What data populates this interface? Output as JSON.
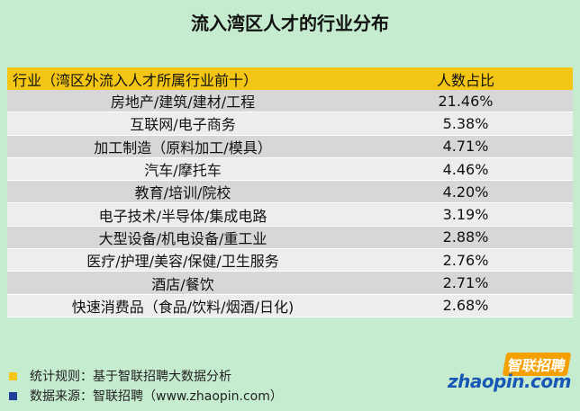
{
  "title": "流入湾区人才的行业分布",
  "table": {
    "headers": [
      "行业（湾区外流入人才所属行业前十）",
      "人数占比"
    ],
    "rows": [
      {
        "industry": "房地产/建筑/建材/工程",
        "share": "21.46%"
      },
      {
        "industry": "互联网/电子商务",
        "share": "5.38%"
      },
      {
        "industry": "加工制造（原料加工/模具）",
        "share": "4.71%"
      },
      {
        "industry": "汽车/摩托车",
        "share": "4.46%"
      },
      {
        "industry": "教育/培训/院校",
        "share": "4.20%"
      },
      {
        "industry": "电子技术/半导体/集成电路",
        "share": "3.19%"
      },
      {
        "industry": "大型设备/机电设备/重工业",
        "share": "2.88%"
      },
      {
        "industry": "医疗/护理/美容/保健/卫生服务",
        "share": "2.76%"
      },
      {
        "industry": "酒店/餐饮",
        "share": "2.71%"
      },
      {
        "industry": "快速消费品（食品/饮料/烟酒/日化)",
        "share": "2.68%"
      }
    ]
  },
  "footer": {
    "rule": "统计规则：基于智联招聘大数据分析",
    "source": "数据来源：智联招聘（www.zhaopin.com）"
  },
  "logo": {
    "cn": "智联招聘",
    "en": "zhaopin.com"
  },
  "colors": {
    "background": "#c6ecd0",
    "header": "#f3c515",
    "row_dark": "#d7d7d7",
    "row_light": "#ededed",
    "bullet_yellow": "#f3c515",
    "bullet_blue": "#1f3f9a"
  }
}
